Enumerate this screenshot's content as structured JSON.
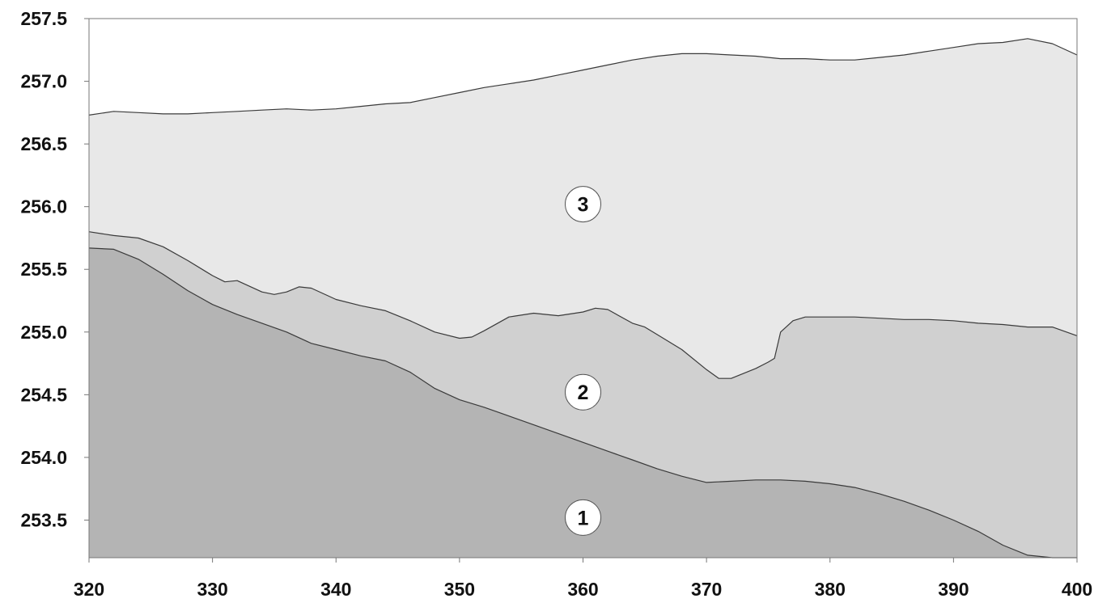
{
  "chart_data": {
    "type": "area",
    "title": "",
    "xlabel": "",
    "ylabel": "",
    "xlim": [
      320,
      400
    ],
    "ylim": [
      253.2,
      257.5
    ],
    "x_ticks": [
      "320",
      "330",
      "340",
      "350",
      "360",
      "370",
      "380",
      "390",
      "400"
    ],
    "y_ticks": [
      "253.5",
      "254.0",
      "254.5",
      "255.0",
      "255.5",
      "256.0",
      "256.5",
      "257.0",
      "257.5"
    ],
    "grid": false,
    "legend": "none",
    "colors": {
      "layer1": "#b4b4b4",
      "layer2": "#d0d0d0",
      "layer3": "#e8e8e8",
      "outline": "#3a3a3a",
      "frame": "#777777"
    },
    "layers": [
      {
        "label": "1",
        "label_pos": [
          360,
          253.52
        ],
        "boundary": [
          [
            320,
            255.67
          ],
          [
            322,
            255.66
          ],
          [
            324,
            255.58
          ],
          [
            326,
            255.46
          ],
          [
            328,
            255.33
          ],
          [
            330,
            255.22
          ],
          [
            332,
            255.14
          ],
          [
            334,
            255.07
          ],
          [
            336,
            255.0
          ],
          [
            338,
            254.91
          ],
          [
            340,
            254.86
          ],
          [
            342,
            254.81
          ],
          [
            344,
            254.77
          ],
          [
            346,
            254.68
          ],
          [
            348,
            254.55
          ],
          [
            350,
            254.46
          ],
          [
            352,
            254.4
          ],
          [
            354,
            254.33
          ],
          [
            356,
            254.26
          ],
          [
            358,
            254.19
          ],
          [
            360,
            254.12
          ],
          [
            362,
            254.05
          ],
          [
            364,
            253.98
          ],
          [
            366,
            253.91
          ],
          [
            368,
            253.85
          ],
          [
            370,
            253.8
          ],
          [
            372,
            253.81
          ],
          [
            374,
            253.82
          ],
          [
            376,
            253.82
          ],
          [
            378,
            253.81
          ],
          [
            380,
            253.79
          ],
          [
            382,
            253.76
          ],
          [
            384,
            253.71
          ],
          [
            386,
            253.65
          ],
          [
            388,
            253.58
          ],
          [
            390,
            253.5
          ],
          [
            392,
            253.41
          ],
          [
            394,
            253.3
          ],
          [
            396,
            253.22
          ],
          [
            398,
            253.2
          ],
          [
            400,
            253.2
          ]
        ]
      },
      {
        "label": "2",
        "label_pos": [
          360,
          254.52
        ],
        "boundary": [
          [
            320,
            255.8
          ],
          [
            322,
            255.77
          ],
          [
            324,
            255.75
          ],
          [
            326,
            255.68
          ],
          [
            328,
            255.57
          ],
          [
            330,
            255.45
          ],
          [
            331,
            255.4
          ],
          [
            332,
            255.41
          ],
          [
            334,
            255.32
          ],
          [
            335,
            255.3
          ],
          [
            336,
            255.32
          ],
          [
            337,
            255.36
          ],
          [
            338,
            255.35
          ],
          [
            340,
            255.26
          ],
          [
            342,
            255.21
          ],
          [
            344,
            255.17
          ],
          [
            346,
            255.09
          ],
          [
            348,
            255.0
          ],
          [
            350,
            254.95
          ],
          [
            351,
            254.96
          ],
          [
            352,
            255.01
          ],
          [
            354,
            255.12
          ],
          [
            356,
            255.15
          ],
          [
            358,
            255.13
          ],
          [
            360,
            255.16
          ],
          [
            361,
            255.19
          ],
          [
            362,
            255.18
          ],
          [
            364,
            255.07
          ],
          [
            365,
            255.04
          ],
          [
            366,
            254.98
          ],
          [
            368,
            254.86
          ],
          [
            370,
            254.7
          ],
          [
            371,
            254.63
          ],
          [
            372,
            254.63
          ],
          [
            374,
            254.71
          ],
          [
            375,
            254.76
          ],
          [
            375.5,
            254.79
          ],
          [
            376,
            255.0
          ],
          [
            377,
            255.09
          ],
          [
            378,
            255.12
          ],
          [
            380,
            255.12
          ],
          [
            382,
            255.12
          ],
          [
            384,
            255.11
          ],
          [
            386,
            255.1
          ],
          [
            388,
            255.1
          ],
          [
            390,
            255.09
          ],
          [
            392,
            255.07
          ],
          [
            394,
            255.06
          ],
          [
            396,
            255.04
          ],
          [
            398,
            255.04
          ],
          [
            400,
            254.97
          ]
        ]
      },
      {
        "label": "3",
        "label_pos": [
          360,
          256.02
        ],
        "boundary": [
          [
            320,
            256.73
          ],
          [
            322,
            256.76
          ],
          [
            324,
            256.75
          ],
          [
            326,
            256.74
          ],
          [
            328,
            256.74
          ],
          [
            330,
            256.75
          ],
          [
            332,
            256.76
          ],
          [
            334,
            256.77
          ],
          [
            336,
            256.78
          ],
          [
            338,
            256.77
          ],
          [
            340,
            256.78
          ],
          [
            342,
            256.8
          ],
          [
            344,
            256.82
          ],
          [
            346,
            256.83
          ],
          [
            348,
            256.87
          ],
          [
            350,
            256.91
          ],
          [
            352,
            256.95
          ],
          [
            354,
            256.98
          ],
          [
            356,
            257.01
          ],
          [
            358,
            257.05
          ],
          [
            360,
            257.09
          ],
          [
            362,
            257.13
          ],
          [
            364,
            257.17
          ],
          [
            366,
            257.2
          ],
          [
            368,
            257.22
          ],
          [
            370,
            257.22
          ],
          [
            372,
            257.21
          ],
          [
            374,
            257.2
          ],
          [
            376,
            257.18
          ],
          [
            378,
            257.18
          ],
          [
            380,
            257.17
          ],
          [
            382,
            257.17
          ],
          [
            384,
            257.19
          ],
          [
            386,
            257.21
          ],
          [
            388,
            257.24
          ],
          [
            390,
            257.27
          ],
          [
            392,
            257.3
          ],
          [
            394,
            257.31
          ],
          [
            396,
            257.34
          ],
          [
            398,
            257.3
          ],
          [
            400,
            257.21
          ]
        ]
      }
    ]
  }
}
